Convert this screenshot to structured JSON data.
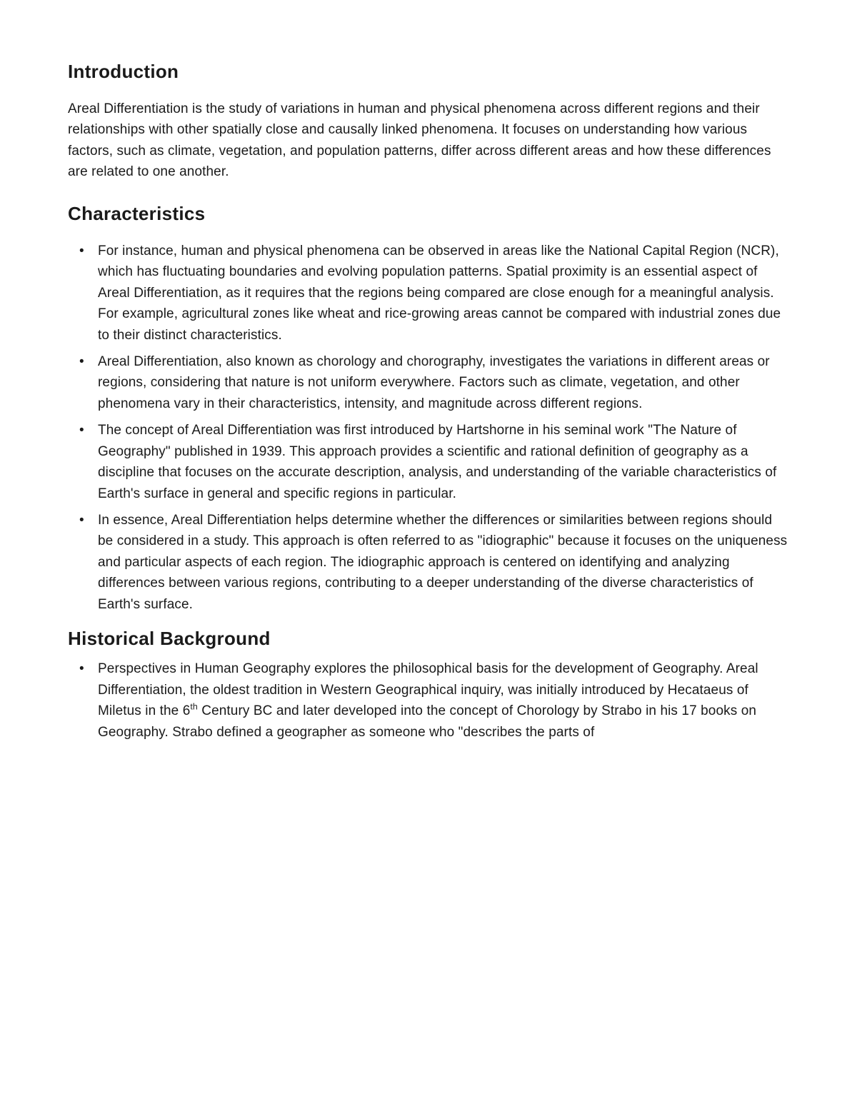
{
  "sections": {
    "introduction": {
      "heading": "Introduction",
      "body": "Areal Differentiation is the study of variations in human and physical phenomena across different regions and their relationships with other spatially close and causally linked phenomena. It focuses on understanding how various factors, such as climate, vegetation, and population patterns, differ across different areas and how these differences are related to one another."
    },
    "characteristics": {
      "heading": "Characteristics",
      "bullets": [
        "For instance, human and physical phenomena can be observed in areas like the National Capital Region (NCR), which has fluctuating boundaries and evolving population patterns. Spatial proximity is an essential aspect of Areal Differentiation, as it requires that the regions being compared are close enough for a meaningful analysis. For example, agricultural zones like wheat and rice-growing areas cannot be compared with industrial zones due to their distinct characteristics.",
        "Areal Differentiation, also known as chorology and chorography, investigates the variations in different areas or regions, considering that nature is not uniform everywhere. Factors such as climate, vegetation, and other phenomena vary in their characteristics, intensity, and magnitude across different regions.",
        "The concept of Areal Differentiation was first introduced by Hartshorne in his seminal work \"The Nature of Geography\" published in 1939. This approach provides a scientific and rational definition of geography as a discipline that focuses on the accurate description, analysis, and understanding of the variable characteristics of Earth's surface in general and specific regions in particular.",
        "In essence, Areal Differentiation helps determine whether the differences or similarities between regions should be considered in a study. This approach is often referred to as \"idiographic\" because it focuses on the uniqueness and particular aspects of each region. The idiographic approach is centered on identifying and analyzing differences between various regions, contributing to a deeper understanding of the diverse characteristics of Earth's surface."
      ]
    },
    "historical": {
      "heading": "Historical Background",
      "bullet_pre": "Perspectives in Human Geography explores the philosophical basis for the development of Geography. Areal Differentiation, the oldest tradition in Western Geographical inquiry, was initially introduced by Hecataeus of Miletus in the 6",
      "bullet_sup": "th",
      "bullet_post": " Century BC and later developed into the concept of Chorology by Strabo in his 17 books on Geography. Strabo defined a geographer as someone who \"describes the parts of"
    }
  },
  "style": {
    "background_color": "#ffffff",
    "text_color": "#1a1a1a",
    "heading_fontsize": 26,
    "body_fontsize": 19,
    "line_height": 1.55
  }
}
